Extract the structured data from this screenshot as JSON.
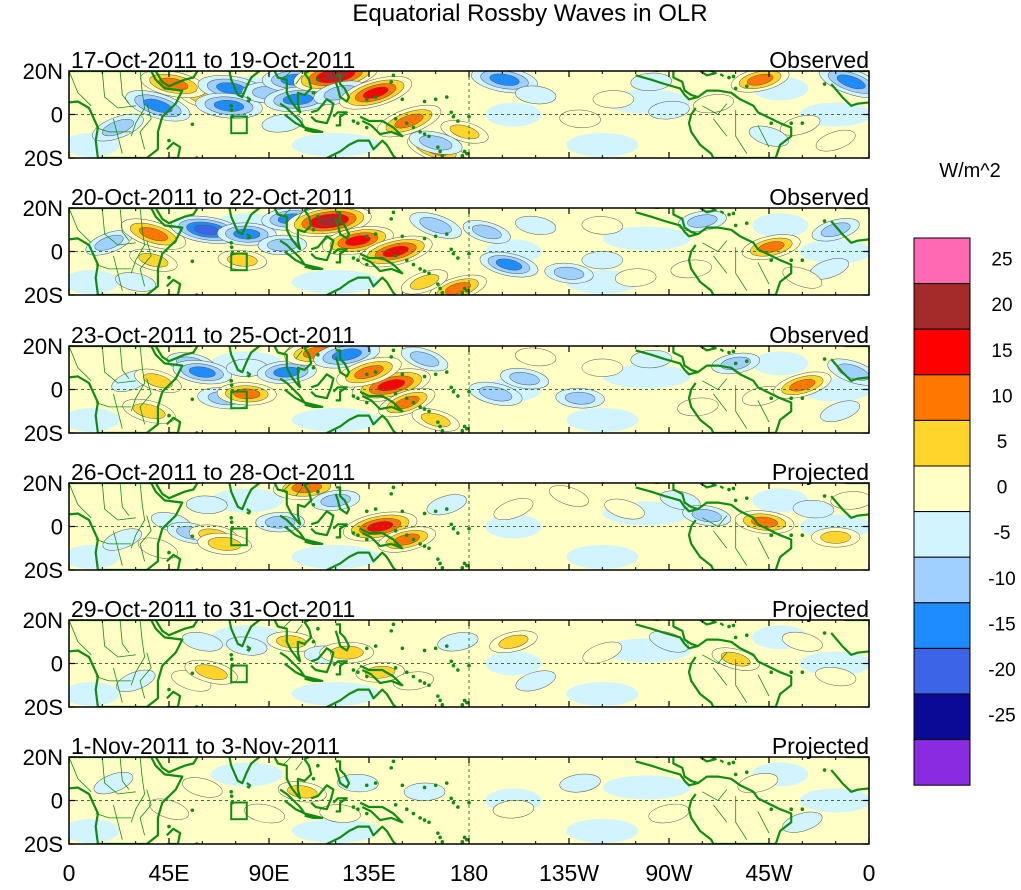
{
  "chart_data": {
    "type": "heatmap",
    "title": "Equatorial Rossby Waves in OLR",
    "variable": "OLR anomaly (equatorial Rossby wave filtered)",
    "x_ticks": [
      "0",
      "45E",
      "90E",
      "135E",
      "180",
      "135W",
      "90W",
      "45W",
      "0"
    ],
    "x_tick_lon": [
      0,
      45,
      90,
      135,
      180,
      225,
      270,
      315,
      360
    ],
    "y_ticks": [
      "20N",
      "0",
      "20S"
    ],
    "y_tick_lat": [
      20,
      0,
      -20
    ],
    "xlim": [
      0,
      360
    ],
    "ylim": [
      -20,
      20
    ],
    "reference_lines": {
      "equator": 0,
      "dateline": 180
    },
    "panels": [
      {
        "period": "17-Oct-2011 to 19-Oct-2011",
        "label": "Observed",
        "features": [
          {
            "lon": 22,
            "lat": -6,
            "v": -10
          },
          {
            "lon": 40,
            "lat": 4,
            "v": -15
          },
          {
            "lon": 60,
            "lat": 8,
            "v": 8
          },
          {
            "lon": 47,
            "lat": 14,
            "v": 15
          },
          {
            "lon": 73,
            "lat": 12,
            "v": -15
          },
          {
            "lon": 72,
            "lat": 4,
            "v": -15
          },
          {
            "lon": 90,
            "lat": 10,
            "v": -10
          },
          {
            "lon": 102,
            "lat": 16,
            "v": -15
          },
          {
            "lon": 103,
            "lat": 7,
            "v": -15
          },
          {
            "lon": 96,
            "lat": -4,
            "v": -5
          },
          {
            "lon": 120,
            "lat": 18,
            "v": 22
          },
          {
            "lon": 122,
            "lat": 10,
            "v": -10
          },
          {
            "lon": 138,
            "lat": 10,
            "v": 18
          },
          {
            "lon": 153,
            "lat": -3,
            "v": 15
          },
          {
            "lon": 165,
            "lat": -16,
            "v": 12
          },
          {
            "lon": 178,
            "lat": -8,
            "v": 8
          },
          {
            "lon": 165,
            "lat": -13,
            "v": -10
          },
          {
            "lon": 196,
            "lat": 16,
            "v": -15
          },
          {
            "lon": 210,
            "lat": 9,
            "v": -5
          },
          {
            "lon": 230,
            "lat": -2,
            "v": 5
          },
          {
            "lon": 245,
            "lat": 7,
            "v": 5
          },
          {
            "lon": 262,
            "lat": 15,
            "v": -5
          },
          {
            "lon": 270,
            "lat": 2,
            "v": -5
          },
          {
            "lon": 290,
            "lat": 5,
            "v": 5
          },
          {
            "lon": 311,
            "lat": 16,
            "v": 12
          },
          {
            "lon": 329,
            "lat": -5,
            "v": 5
          },
          {
            "lon": 345,
            "lat": -12,
            "v": 5
          },
          {
            "lon": 352,
            "lat": 15,
            "v": -15
          },
          {
            "lon": 315,
            "lat": -10,
            "v": -5
          }
        ]
      },
      {
        "period": "20-Oct-2011 to 22-Oct-2011",
        "label": "Observed",
        "features": [
          {
            "lon": 18,
            "lat": 4,
            "v": -8
          },
          {
            "lon": 38,
            "lat": 8,
            "v": 15
          },
          {
            "lon": 38,
            "lat": -4,
            "v": 8
          },
          {
            "lon": 30,
            "lat": -14,
            "v": -5
          },
          {
            "lon": 62,
            "lat": 10,
            "v": -17
          },
          {
            "lon": 78,
            "lat": -4,
            "v": 8
          },
          {
            "lon": 80,
            "lat": 8,
            "v": -12
          },
          {
            "lon": 96,
            "lat": 3,
            "v": -8
          },
          {
            "lon": 100,
            "lat": 15,
            "v": -12
          },
          {
            "lon": 117,
            "lat": 14,
            "v": 22
          },
          {
            "lon": 130,
            "lat": 5,
            "v": 17
          },
          {
            "lon": 147,
            "lat": 0,
            "v": 18
          },
          {
            "lon": 175,
            "lat": -17,
            "v": 12
          },
          {
            "lon": 160,
            "lat": -14,
            "v": 8
          },
          {
            "lon": 165,
            "lat": 12,
            "v": -10
          },
          {
            "lon": 188,
            "lat": 9,
            "v": -8
          },
          {
            "lon": 198,
            "lat": -6,
            "v": -12
          },
          {
            "lon": 210,
            "lat": 12,
            "v": -5
          },
          {
            "lon": 225,
            "lat": -10,
            "v": -8
          },
          {
            "lon": 240,
            "lat": 12,
            "v": 5
          },
          {
            "lon": 240,
            "lat": -4,
            "v": -5
          },
          {
            "lon": 255,
            "lat": -12,
            "v": 5
          },
          {
            "lon": 280,
            "lat": -8,
            "v": 5
          },
          {
            "lon": 285,
            "lat": 14,
            "v": -8
          },
          {
            "lon": 316,
            "lat": 2,
            "v": 12
          },
          {
            "lon": 345,
            "lat": 10,
            "v": -8
          },
          {
            "lon": 342,
            "lat": -8,
            "v": -5
          },
          {
            "lon": 330,
            "lat": -12,
            "v": 5
          }
        ]
      },
      {
        "period": "23-Oct-2011 to 25-Oct-2011",
        "label": "Observed",
        "features": [
          {
            "lon": 28,
            "lat": 4,
            "v": -5
          },
          {
            "lon": 40,
            "lat": 4,
            "v": 8
          },
          {
            "lon": 36,
            "lat": -10,
            "v": 10
          },
          {
            "lon": 55,
            "lat": 12,
            "v": -8
          },
          {
            "lon": 60,
            "lat": 8,
            "v": -12
          },
          {
            "lon": 70,
            "lat": -4,
            "v": -10
          },
          {
            "lon": 80,
            "lat": -2,
            "v": 12
          },
          {
            "lon": 80,
            "lat": 10,
            "v": -5
          },
          {
            "lon": 98,
            "lat": 8,
            "v": -12
          },
          {
            "lon": 112,
            "lat": 17,
            "v": 15
          },
          {
            "lon": 125,
            "lat": 16,
            "v": -15
          },
          {
            "lon": 145,
            "lat": 2,
            "v": 20
          },
          {
            "lon": 135,
            "lat": 8,
            "v": 15
          },
          {
            "lon": 152,
            "lat": -6,
            "v": 12
          },
          {
            "lon": 160,
            "lat": 14,
            "v": -8
          },
          {
            "lon": 165,
            "lat": -14,
            "v": 8
          },
          {
            "lon": 192,
            "lat": -2,
            "v": -10
          },
          {
            "lon": 205,
            "lat": 5,
            "v": -8
          },
          {
            "lon": 210,
            "lat": 15,
            "v": 5
          },
          {
            "lon": 230,
            "lat": -4,
            "v": -8
          },
          {
            "lon": 240,
            "lat": 10,
            "v": 5
          },
          {
            "lon": 262,
            "lat": 14,
            "v": -5
          },
          {
            "lon": 283,
            "lat": -8,
            "v": 5
          },
          {
            "lon": 300,
            "lat": 12,
            "v": -8
          },
          {
            "lon": 312,
            "lat": -3,
            "v": 5
          },
          {
            "lon": 330,
            "lat": 2,
            "v": 12
          },
          {
            "lon": 347,
            "lat": -10,
            "v": -5
          },
          {
            "lon": 353,
            "lat": 8,
            "v": -10
          }
        ]
      },
      {
        "period": "26-Oct-2011 to 28-Oct-2011",
        "label": "Projected",
        "features": [
          {
            "lon": 24,
            "lat": -6,
            "v": -5
          },
          {
            "lon": 40,
            "lat": -10,
            "v": 5
          },
          {
            "lon": 46,
            "lat": 2,
            "v": -5
          },
          {
            "lon": 55,
            "lat": -3,
            "v": -8
          },
          {
            "lon": 65,
            "lat": -4,
            "v": 8
          },
          {
            "lon": 70,
            "lat": -8,
            "v": 10
          },
          {
            "lon": 62,
            "lat": 10,
            "v": -5
          },
          {
            "lon": 95,
            "lat": 2,
            "v": -8
          },
          {
            "lon": 107,
            "lat": 18,
            "v": 15
          },
          {
            "lon": 120,
            "lat": 12,
            "v": -8
          },
          {
            "lon": 140,
            "lat": 0,
            "v": 18
          },
          {
            "lon": 152,
            "lat": -6,
            "v": 12
          },
          {
            "lon": 170,
            "lat": 10,
            "v": -5
          },
          {
            "lon": 200,
            "lat": 8,
            "v": 5
          },
          {
            "lon": 225,
            "lat": 14,
            "v": 5
          },
          {
            "lon": 250,
            "lat": 8,
            "v": 5
          },
          {
            "lon": 275,
            "lat": 12,
            "v": -5
          },
          {
            "lon": 287,
            "lat": 5,
            "v": -8
          },
          {
            "lon": 313,
            "lat": 2,
            "v": 12
          },
          {
            "lon": 335,
            "lat": 8,
            "v": -5
          },
          {
            "lon": 345,
            "lat": -5,
            "v": 8
          },
          {
            "lon": 352,
            "lat": 12,
            "v": 5
          }
        ]
      },
      {
        "period": "29-Oct-2011 to 31-Oct-2011",
        "label": "Projected",
        "features": [
          {
            "lon": 30,
            "lat": -8,
            "v": -5
          },
          {
            "lon": 55,
            "lat": -8,
            "v": 5
          },
          {
            "lon": 64,
            "lat": -4,
            "v": 10
          },
          {
            "lon": 60,
            "lat": 10,
            "v": -5
          },
          {
            "lon": 80,
            "lat": 8,
            "v": -5
          },
          {
            "lon": 100,
            "lat": 10,
            "v": 8
          },
          {
            "lon": 115,
            "lat": 4,
            "v": -5
          },
          {
            "lon": 125,
            "lat": 5,
            "v": 10
          },
          {
            "lon": 140,
            "lat": -4,
            "v": 8
          },
          {
            "lon": 155,
            "lat": -8,
            "v": 5
          },
          {
            "lon": 175,
            "lat": 10,
            "v": -5
          },
          {
            "lon": 200,
            "lat": 10,
            "v": 8
          },
          {
            "lon": 210,
            "lat": -8,
            "v": -5
          },
          {
            "lon": 240,
            "lat": 5,
            "v": 5
          },
          {
            "lon": 270,
            "lat": 10,
            "v": -5
          },
          {
            "lon": 300,
            "lat": 2,
            "v": 8
          },
          {
            "lon": 330,
            "lat": 10,
            "v": 5
          },
          {
            "lon": 345,
            "lat": -6,
            "v": 5
          }
        ]
      },
      {
        "period": "1-Nov-2011 to 3-Nov-2011",
        "label": "Projected",
        "features": [
          {
            "lon": 20,
            "lat": 8,
            "v": -5
          },
          {
            "lon": 45,
            "lat": -4,
            "v": 5
          },
          {
            "lon": 60,
            "lat": 6,
            "v": 5
          },
          {
            "lon": 88,
            "lat": -6,
            "v": 5
          },
          {
            "lon": 105,
            "lat": 4,
            "v": 8
          },
          {
            "lon": 122,
            "lat": -6,
            "v": 5
          },
          {
            "lon": 130,
            "lat": 8,
            "v": -5
          },
          {
            "lon": 160,
            "lat": 4,
            "v": -5
          },
          {
            "lon": 200,
            "lat": -4,
            "v": 5
          },
          {
            "lon": 230,
            "lat": 8,
            "v": -5
          },
          {
            "lon": 270,
            "lat": -6,
            "v": 5
          },
          {
            "lon": 310,
            "lat": 8,
            "v": 5
          },
          {
            "lon": 330,
            "lat": -10,
            "v": -5
          }
        ]
      }
    ],
    "colorbar": {
      "unit_label": "W/m^2",
      "tick_labels": [
        "25",
        "20",
        "15",
        "10",
        "5",
        "0",
        "-5",
        "-10",
        "-15",
        "-20",
        "-25"
      ],
      "colors": [
        "#ff69b4",
        "#a52a2a",
        "#ff0000",
        "#ff7700",
        "#ffd52b",
        "#ffffc6",
        "#d2f4ff",
        "#a0d0ff",
        "#1e8cff",
        "#3c64e6",
        "#0a0a96",
        "#8a2be2"
      ],
      "levels": [
        -25,
        -20,
        -15,
        -10,
        -5,
        0,
        5,
        10,
        15,
        20,
        25
      ]
    },
    "box_region": {
      "lon_range": [
        73,
        80
      ],
      "lat_range": [
        -4,
        0
      ]
    },
    "colors": {
      "coast": "#118c11",
      "frame": "#000000"
    }
  }
}
